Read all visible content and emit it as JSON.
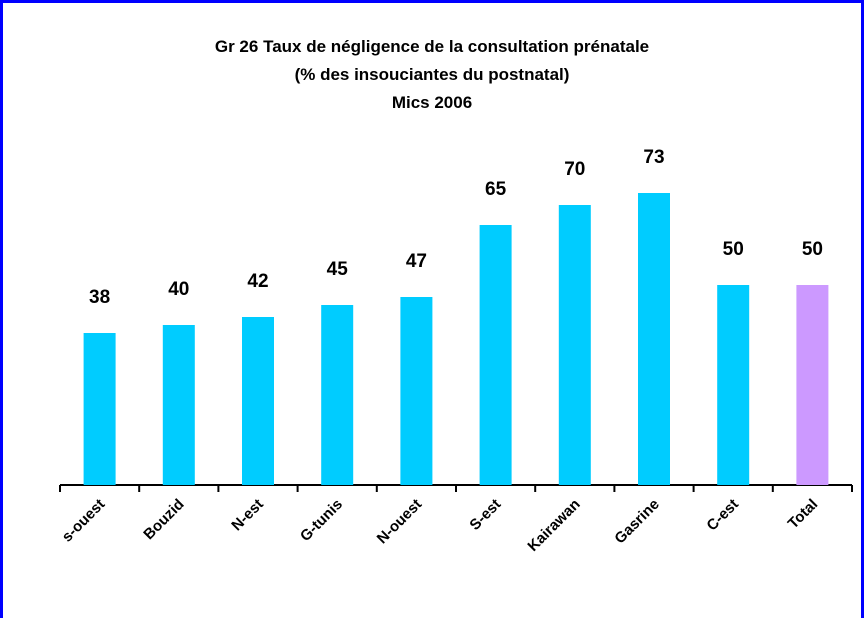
{
  "chart_data": {
    "type": "bar",
    "title": [
      "Gr 26 Taux de négligence de la consultation prénatale",
      "(% des insouciantes du postnatal)",
      "Mics 2006"
    ],
    "categories": [
      "s-ouest",
      "Bouzid",
      "N-est",
      "G-tunis",
      "N-ouest",
      "S-est",
      "Kairawan",
      "Gasrine",
      "C-est",
      "Total"
    ],
    "values": [
      38,
      40,
      42,
      45,
      47,
      65,
      70,
      73,
      50,
      50
    ],
    "colors": [
      "#00ccff",
      "#00ccff",
      "#00ccff",
      "#00ccff",
      "#00ccff",
      "#00ccff",
      "#00ccff",
      "#00ccff",
      "#00ccff",
      "#cc99ff"
    ],
    "ylim": [
      0,
      80
    ]
  }
}
